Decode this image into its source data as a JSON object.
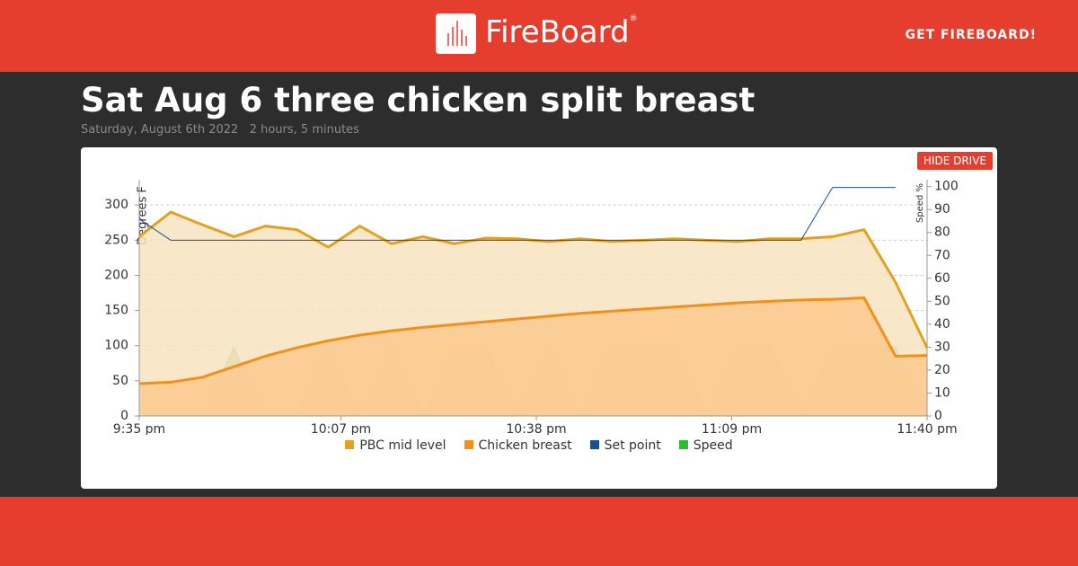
{
  "header": {
    "logo": "FireBoard",
    "logo_mark": "®",
    "cta": "GET FIREBOARD!"
  },
  "page": {
    "title": "Sat Aug 6 three chicken split breast",
    "date": "Saturday, August 6th 2022",
    "duration": "2 hours, 5 minutes"
  },
  "controls": {
    "hide_drive": "HIDE DRIVE"
  },
  "chart_data": {
    "type": "line",
    "x": [
      "9:35 pm",
      "9:40 pm",
      "9:45 pm",
      "9:50 pm",
      "9:55 pm",
      "10:00 pm",
      "10:05 pm",
      "10:10 pm",
      "10:15 pm",
      "10:20 pm",
      "10:25 pm",
      "10:30 pm",
      "10:35 pm",
      "10:40 pm",
      "10:45 pm",
      "10:50 pm",
      "10:55 pm",
      "11:00 pm",
      "11:05 pm",
      "11:10 pm",
      "11:15 pm",
      "11:20 pm",
      "11:25 pm",
      "11:30 pm",
      "11:35 pm",
      "11:40 pm"
    ],
    "xlim": [
      "9:35 pm",
      "11:40 pm"
    ],
    "xticks": [
      "9:35 pm",
      "10:07 pm",
      "10:38 pm",
      "11:09 pm",
      "11:40 pm"
    ],
    "ylabel": "Degrees F",
    "y2label": "Speed %",
    "ylim": [
      0,
      336
    ],
    "yticks": [
      0,
      50,
      100,
      150,
      200,
      250,
      300
    ],
    "y2lim": [
      0,
      103
    ],
    "y2ticks": [
      0,
      10,
      20,
      30,
      40,
      50,
      60,
      70,
      80,
      90,
      100
    ],
    "grid": true,
    "series": [
      {
        "name": "PBC mid level",
        "color": "#e2a21f",
        "fill": "#f7e3bf",
        "values": [
          255,
          290,
          272,
          255,
          270,
          265,
          240,
          270,
          245,
          255,
          245,
          253,
          252,
          248,
          252,
          248,
          250,
          252,
          250,
          248,
          252,
          252,
          255,
          265,
          190,
          97
        ]
      },
      {
        "name": "Chicken breast",
        "color": "#f39019",
        "fill": "#fbc98f",
        "values": [
          46,
          48,
          55,
          70,
          85,
          97,
          107,
          115,
          121,
          126,
          130,
          134,
          138,
          142,
          146,
          149,
          152,
          155,
          158,
          161,
          163,
          165,
          166,
          168,
          85,
          86
        ]
      },
      {
        "name": "Set point",
        "color": "#1a4d9a",
        "values": [
          280,
          250,
          250,
          250,
          250,
          250,
          250,
          250,
          250,
          250,
          250,
          250,
          250,
          250,
          250,
          250,
          250,
          250,
          250,
          250,
          250,
          250,
          325,
          325,
          325,
          null
        ]
      },
      {
        "name": "Speed",
        "color": "#2ebd2e",
        "fill": "#8fc25a",
        "axis": "y2",
        "values": [
          0,
          0,
          0,
          30,
          0,
          0,
          30,
          0,
          30,
          0,
          30,
          30,
          0,
          30,
          0,
          30,
          30,
          30,
          0,
          30,
          30,
          0,
          30,
          30,
          30,
          0
        ]
      }
    ]
  }
}
